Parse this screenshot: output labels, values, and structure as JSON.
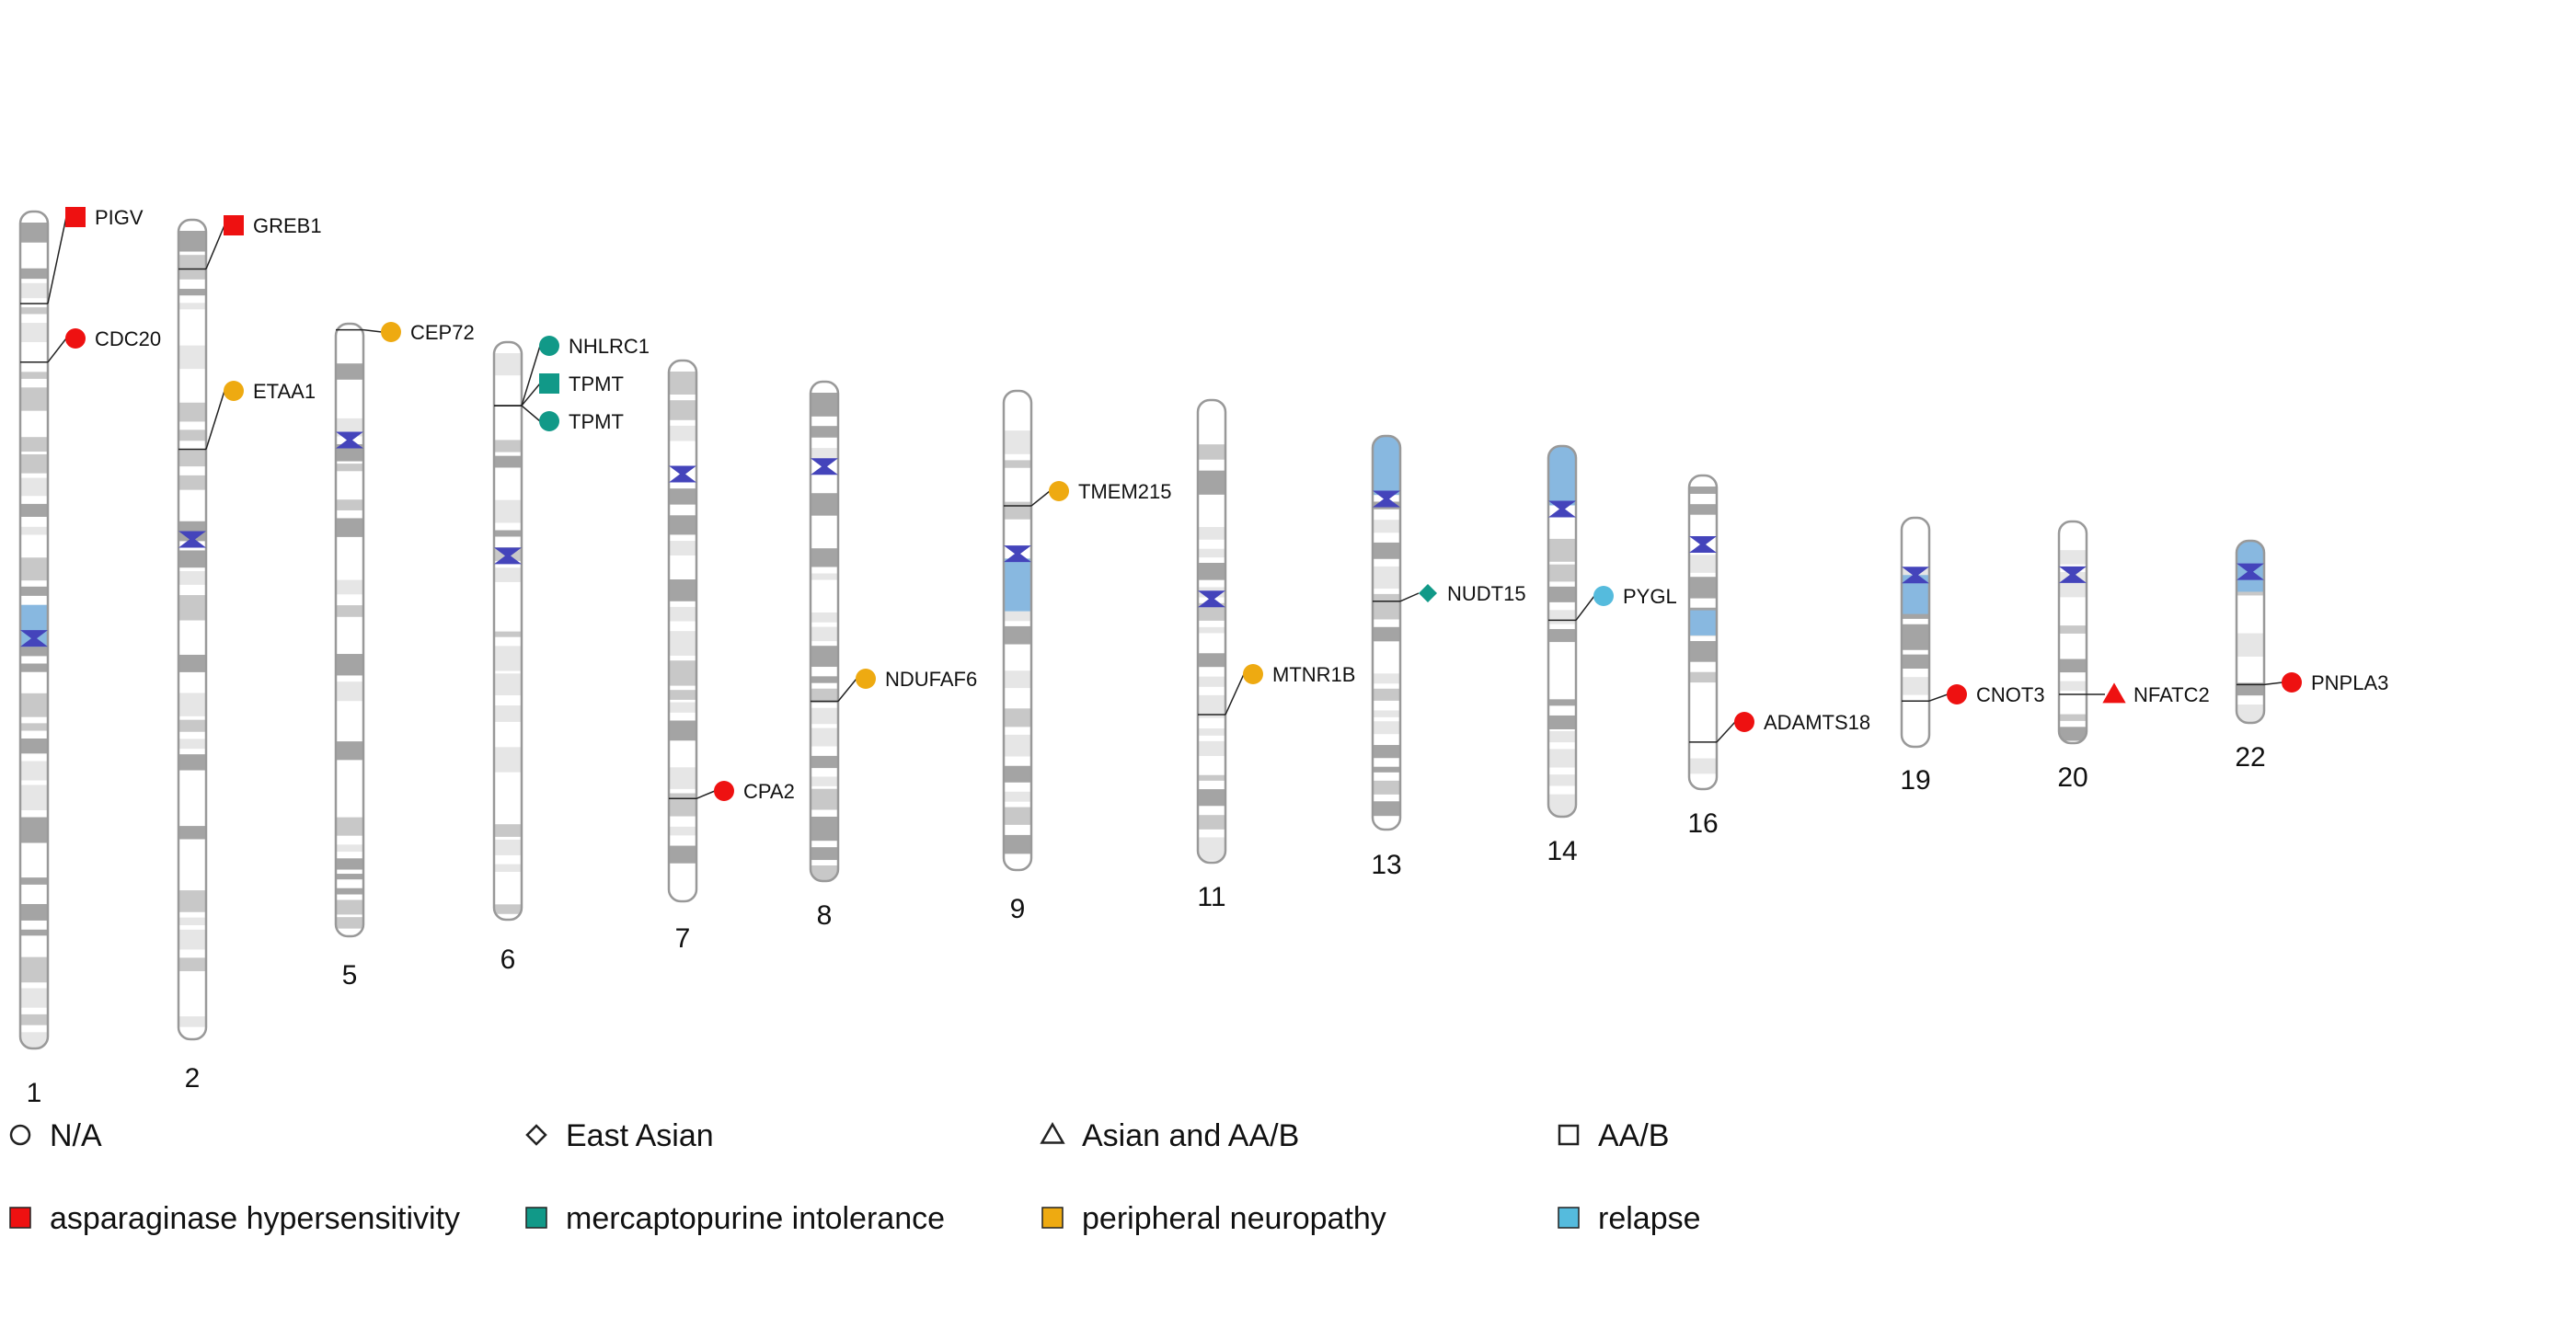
{
  "colors": {
    "asparaginase hypersensitivity": "#ee1111",
    "mercaptopurine intolerance": "#119988",
    "peripheral neuropathy": "#eeaa11",
    "relapse": "#55bbdd",
    "centromere": "#4444bb",
    "band_dark": "#a4a4a4",
    "band_mid": "#c8c8c8",
    "band_light": "#e6e6e6",
    "highlight": "#88b8e0"
  },
  "chromosomes": [
    {
      "name": "1",
      "icon": "chromosome-ideogram",
      "highlight_regions": [
        [
          0.47,
          0.52
        ]
      ]
    },
    {
      "name": "2",
      "icon": "chromosome-ideogram",
      "highlight_regions": []
    },
    {
      "name": "5",
      "icon": "chromosome-ideogram",
      "highlight_regions": []
    },
    {
      "name": "6",
      "icon": "chromosome-ideogram",
      "highlight_regions": []
    },
    {
      "name": "7",
      "icon": "chromosome-ideogram",
      "highlight_regions": []
    },
    {
      "name": "8",
      "icon": "chromosome-ideogram",
      "highlight_regions": []
    },
    {
      "name": "9",
      "icon": "chromosome-ideogram",
      "highlight_regions": [
        [
          0.35,
          0.46
        ]
      ]
    },
    {
      "name": "11",
      "icon": "chromosome-ideogram",
      "highlight_regions": []
    },
    {
      "name": "13",
      "icon": "chromosome-ideogram",
      "highlight_regions": [
        [
          0.0,
          0.15
        ]
      ]
    },
    {
      "name": "14",
      "icon": "chromosome-ideogram",
      "highlight_regions": [
        [
          0.0,
          0.16
        ]
      ]
    },
    {
      "name": "16",
      "icon": "chromosome-ideogram",
      "highlight_regions": [
        [
          0.43,
          0.51
        ]
      ]
    },
    {
      "name": "19",
      "icon": "chromosome-ideogram",
      "highlight_regions": [
        [
          0.25,
          0.42
        ]
      ]
    },
    {
      "name": "20",
      "icon": "chromosome-ideogram",
      "highlight_regions": []
    },
    {
      "name": "22",
      "icon": "chromosome-ideogram",
      "highlight_regions": [
        [
          0.0,
          0.28
        ]
      ]
    }
  ],
  "annotations": [
    {
      "gene": "PIGV",
      "chromosome": "1",
      "position": 0.11,
      "shape": "square",
      "phenotype": "asparaginase hypersensitivity"
    },
    {
      "gene": "CDC20",
      "chromosome": "1",
      "position": 0.18,
      "shape": "circle",
      "phenotype": "asparaginase hypersensitivity"
    },
    {
      "gene": "GREB1",
      "chromosome": "2",
      "position": 0.06,
      "shape": "square",
      "phenotype": "asparaginase hypersensitivity"
    },
    {
      "gene": "ETAA1",
      "chromosome": "2",
      "position": 0.28,
      "shape": "circle",
      "phenotype": "peripheral neuropathy"
    },
    {
      "gene": "CEP72",
      "chromosome": "5",
      "position": 0.01,
      "shape": "circle",
      "phenotype": "peripheral neuropathy"
    },
    {
      "gene": "NHLRC1",
      "chromosome": "6",
      "position": 0.11,
      "shape": "circle",
      "phenotype": "mercaptopurine intolerance"
    },
    {
      "gene": "TPMT",
      "chromosome": "6",
      "position": 0.11,
      "shape": "square",
      "phenotype": "mercaptopurine intolerance"
    },
    {
      "gene": "TPMT",
      "chromosome": "6",
      "position": 0.11,
      "shape": "circle",
      "phenotype": "mercaptopurine intolerance"
    },
    {
      "gene": "CPA2",
      "chromosome": "7",
      "position": 0.81,
      "shape": "circle",
      "phenotype": "asparaginase hypersensitivity"
    },
    {
      "gene": "NDUFAF6",
      "chromosome": "8",
      "position": 0.64,
      "shape": "circle",
      "phenotype": "peripheral neuropathy"
    },
    {
      "gene": "TMEM215",
      "chromosome": "9",
      "position": 0.24,
      "shape": "circle",
      "phenotype": "peripheral neuropathy"
    },
    {
      "gene": "MTNR1B",
      "chromosome": "11",
      "position": 0.68,
      "shape": "circle",
      "phenotype": "peripheral neuropathy"
    },
    {
      "gene": "NUDT15",
      "chromosome": "13",
      "position": 0.42,
      "shape": "diamond",
      "phenotype": "mercaptopurine intolerance"
    },
    {
      "gene": "PYGL",
      "chromosome": "14",
      "position": 0.47,
      "shape": "circle",
      "phenotype": "relapse"
    },
    {
      "gene": "ADAMTS18",
      "chromosome": "16",
      "position": 0.85,
      "shape": "circle",
      "phenotype": "asparaginase hypersensitivity"
    },
    {
      "gene": "CNOT3",
      "chromosome": "19",
      "position": 0.8,
      "shape": "circle",
      "phenotype": "asparaginase hypersensitivity"
    },
    {
      "gene": "NFATC2",
      "chromosome": "20",
      "position": 0.78,
      "shape": "triangle",
      "phenotype": "asparaginase hypersensitivity"
    },
    {
      "gene": "PNPLA3",
      "chromosome": "22",
      "position": 0.79,
      "shape": "circle",
      "phenotype": "asparaginase hypersensitivity"
    }
  ],
  "legend": {
    "shapes": [
      {
        "label": "N/A",
        "shape": "circle",
        "icon": "circle-outline-icon"
      },
      {
        "label": "East Asian",
        "shape": "diamond",
        "icon": "diamond-outline-icon"
      },
      {
        "label": "Asian and AA/B",
        "shape": "triangle",
        "icon": "triangle-outline-icon"
      },
      {
        "label": "AA/B",
        "shape": "square",
        "icon": "square-outline-icon"
      }
    ],
    "phenotypes": [
      {
        "label": "asparaginase hypersensitivity",
        "color": "#ee1111"
      },
      {
        "label": "mercaptopurine intolerance",
        "color": "#119988"
      },
      {
        "label": "peripheral neuropathy",
        "color": "#eeaa11"
      },
      {
        "label": "relapse",
        "color": "#55bbdd"
      }
    ]
  }
}
